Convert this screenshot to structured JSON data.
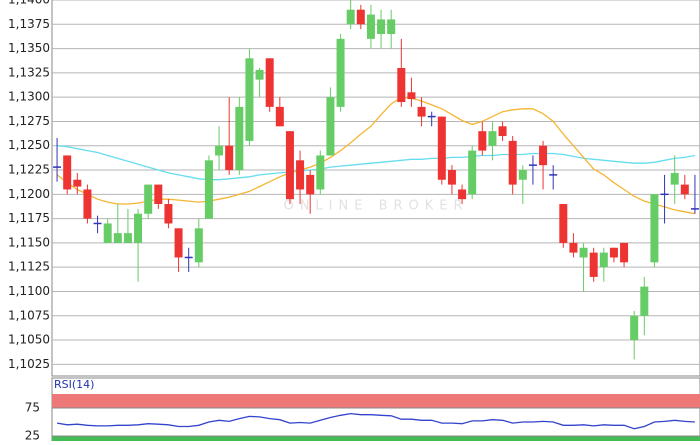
{
  "chart_data": [
    {
      "type": "candlestick",
      "watermark": "ONLINE BROKER",
      "up_color": "#66cc66",
      "down_color": "#ee3333",
      "doji_color": "#3333bb",
      "ylim": [
        1.1013,
        1.14
      ],
      "yticks": [
        {
          "value": 1.1025,
          "label": "1,1025"
        },
        {
          "value": 1.105,
          "label": "1,1050"
        },
        {
          "value": 1.1075,
          "label": "1,1075"
        },
        {
          "value": 1.11,
          "label": "1,1100"
        },
        {
          "value": 1.1125,
          "label": "1,1125"
        },
        {
          "value": 1.115,
          "label": "1,1150"
        },
        {
          "value": 1.1175,
          "label": "1,1175"
        },
        {
          "value": 1.12,
          "label": "1,1200"
        },
        {
          "value": 1.1225,
          "label": "1,1225"
        },
        {
          "value": 1.125,
          "label": "1,1250"
        },
        {
          "value": 1.1275,
          "label": "1,1275"
        },
        {
          "value": 1.13,
          "label": "1,1300"
        },
        {
          "value": 1.1325,
          "label": "1,1325"
        },
        {
          "value": 1.135,
          "label": "1,1350"
        },
        {
          "value": 1.1375,
          "label": "1,1375"
        },
        {
          "value": 1.14,
          "label": "1,1400"
        }
      ],
      "grid": true,
      "open": [
        1.1228,
        1.124,
        1.1215,
        1.1205,
        1.117,
        1.115,
        1.115,
        1.115,
        1.115,
        1.118,
        1.121,
        1.119,
        1.1165,
        1.1135,
        1.113,
        1.1175,
        1.124,
        1.125,
        1.1225,
        1.1255,
        1.1318,
        1.134,
        1.129,
        1.1265,
        1.1235,
        1.122,
        1.1205,
        1.124,
        1.129,
        1.1375,
        1.139,
        1.136,
        1.1365,
        1.1365,
        1.133,
        1.1305,
        1.129,
        1.128,
        1.128,
        1.1225,
        1.1205,
        1.12,
        1.1265,
        1.125,
        1.127,
        1.1255,
        1.1215,
        1.123,
        1.125,
        1.122,
        1.119,
        1.115,
        1.1135,
        1.114,
        1.1125,
        1.1145,
        1.115,
        1.105,
        1.1075,
        1.113,
        1.12,
        1.121,
        1.121,
        1.1185
      ],
      "high": [
        1.1258,
        1.124,
        1.1222,
        1.121,
        1.1178,
        1.1175,
        1.119,
        1.1185,
        1.1185,
        1.121,
        1.121,
        1.1195,
        1.1165,
        1.1145,
        1.1175,
        1.124,
        1.127,
        1.13,
        1.13,
        1.135,
        1.133,
        1.134,
        1.13,
        1.1265,
        1.1245,
        1.1225,
        1.1245,
        1.131,
        1.1365,
        1.1405,
        1.1395,
        1.1395,
        1.139,
        1.139,
        1.136,
        1.132,
        1.13,
        1.1285,
        1.128,
        1.123,
        1.121,
        1.125,
        1.1275,
        1.1275,
        1.1275,
        1.126,
        1.123,
        1.124,
        1.1255,
        1.123,
        1.119,
        1.116,
        1.115,
        1.1145,
        1.1145,
        1.1145,
        1.115,
        1.108,
        1.1115,
        1.12,
        1.122,
        1.124,
        1.122,
        1.122
      ],
      "low": [
        1.1213,
        1.12,
        1.12,
        1.117,
        1.116,
        1.115,
        1.115,
        1.115,
        1.111,
        1.1175,
        1.1185,
        1.1165,
        1.112,
        1.112,
        1.1125,
        1.1175,
        1.1225,
        1.122,
        1.122,
        1.125,
        1.13,
        1.1285,
        1.127,
        1.119,
        1.119,
        1.118,
        1.12,
        1.124,
        1.1285,
        1.137,
        1.137,
        1.135,
        1.135,
        1.135,
        1.129,
        1.129,
        1.127,
        1.127,
        1.121,
        1.12,
        1.119,
        1.1195,
        1.124,
        1.1235,
        1.1255,
        1.12,
        1.119,
        1.121,
        1.1205,
        1.1205,
        1.1145,
        1.1135,
        1.11,
        1.111,
        1.111,
        1.113,
        1.1125,
        1.103,
        1.1055,
        1.1125,
        1.117,
        1.119,
        1.1195,
        1.118
      ],
      "close": [
        1.1228,
        1.1205,
        1.1208,
        1.1175,
        1.117,
        1.117,
        1.116,
        1.116,
        1.118,
        1.121,
        1.119,
        1.117,
        1.1135,
        1.1135,
        1.1165,
        1.1235,
        1.125,
        1.1225,
        1.129,
        1.134,
        1.1328,
        1.129,
        1.127,
        1.1195,
        1.1205,
        1.12,
        1.124,
        1.13,
        1.136,
        1.139,
        1.1375,
        1.1385,
        1.138,
        1.138,
        1.1295,
        1.1298,
        1.128,
        1.128,
        1.1215,
        1.121,
        1.1195,
        1.1245,
        1.1245,
        1.1265,
        1.126,
        1.121,
        1.1225,
        1.123,
        1.123,
        1.122,
        1.115,
        1.114,
        1.1145,
        1.1115,
        1.114,
        1.1135,
        1.113,
        1.1075,
        1.1105,
        1.12,
        1.12,
        1.1222,
        1.12,
        1.1185
      ],
      "lines": [
        {
          "color": "#66ddee",
          "values": [
            1.125,
            1.1249,
            1.1247,
            1.1245,
            1.1243,
            1.124,
            1.1237,
            1.1234,
            1.1231,
            1.1228,
            1.1225,
            1.1222,
            1.122,
            1.1218,
            1.1216,
            1.1215,
            1.1215,
            1.1216,
            1.1217,
            1.1218,
            1.122,
            1.1221,
            1.1222,
            1.1223,
            1.1224,
            1.1225,
            1.1226,
            1.1228,
            1.1229,
            1.123,
            1.1231,
            1.1232,
            1.1233,
            1.1234,
            1.1235,
            1.1236,
            1.1236,
            1.1237,
            1.1237,
            1.1238,
            1.1238,
            1.1239,
            1.124,
            1.124,
            1.1241,
            1.1241,
            1.1241,
            1.1242,
            1.1242,
            1.1242,
            1.1241,
            1.1239,
            1.1237,
            1.1236,
            1.1235,
            1.1234,
            1.1233,
            1.1232,
            1.1232,
            1.1233,
            1.1235,
            1.1237,
            1.1238,
            1.124
          ]
        },
        {
          "color": "#f5b534",
          "values": [
            1.122,
            1.1212,
            1.1205,
            1.12,
            1.1195,
            1.1192,
            1.119,
            1.119,
            1.1191,
            1.1193,
            1.1195,
            1.1195,
            1.1194,
            1.1193,
            1.1192,
            1.1193,
            1.1195,
            1.1197,
            1.12,
            1.1203,
            1.1208,
            1.1213,
            1.1218,
            1.1222,
            1.1225,
            1.1228,
            1.1232,
            1.1238,
            1.1245,
            1.1253,
            1.1262,
            1.127,
            1.1282,
            1.1293,
            1.13,
            1.1299,
            1.1296,
            1.1292,
            1.1288,
            1.1282,
            1.1276,
            1.1272,
            1.1275,
            1.128,
            1.1285,
            1.1287,
            1.1288,
            1.1288,
            1.1283,
            1.1275,
            1.1262,
            1.125,
            1.1238,
            1.1226,
            1.122,
            1.1212,
            1.1205,
            1.1198,
            1.1193,
            1.119,
            1.1187,
            1.1184,
            1.1182,
            1.118
          ]
        }
      ]
    },
    {
      "type": "line",
      "title": "RSI(14)",
      "ylim": [
        16,
        100
      ],
      "yticks": [
        25,
        75
      ],
      "band_colors": [
        "#44bb55",
        "#ee7777"
      ],
      "series": [
        {
          "color": "#3344cc",
          "values": [
            48,
            45,
            46,
            44,
            43,
            43,
            44,
            44,
            45,
            47,
            46,
            45,
            42,
            42,
            44,
            50,
            53,
            51,
            56,
            60,
            59,
            56,
            54,
            48,
            49,
            48,
            53,
            58,
            62,
            65,
            63,
            63,
            62,
            61,
            55,
            55,
            53,
            53,
            48,
            48,
            47,
            52,
            52,
            54,
            53,
            48,
            50,
            50,
            51,
            50,
            44,
            44,
            45,
            43,
            45,
            44,
            44,
            38,
            42,
            50,
            51,
            53,
            51,
            50
          ]
        }
      ]
    }
  ]
}
